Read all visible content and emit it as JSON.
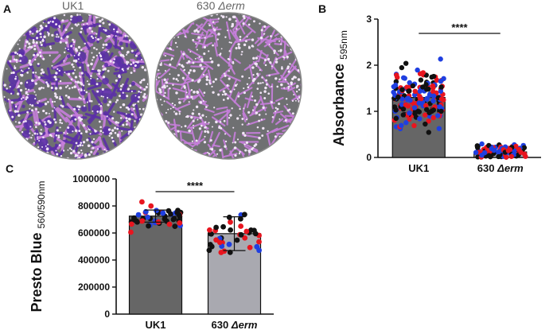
{
  "panels": {
    "A": {
      "letter": "A",
      "images": [
        {
          "label": "UK1",
          "label_italic": ""
        },
        {
          "label": "630 ",
          "label_italic": "Δerm"
        }
      ],
      "colors": {
        "ring": "#8a8a8a",
        "dense_stain": "#5b2fa8",
        "light_stain": "#c77fdc",
        "cell": "#f2e6f7"
      }
    },
    "B": {
      "letter": "B"
    },
    "C": {
      "letter": "C"
    }
  },
  "chart_data": [
    {
      "id": "B",
      "type": "bar",
      "title": "",
      "xlabel": "",
      "ylabel": "Absorbance",
      "ylabel_sub": "595nm",
      "categories": [
        "UK1",
        "630 Δerm"
      ],
      "values": [
        1.3,
        0.12
      ],
      "ylim": [
        0,
        3
      ],
      "yticks": [
        "0",
        "1",
        "2",
        "3"
      ],
      "bar_colors": [
        "#666666",
        "#a9a9b0"
      ],
      "point_colors": [
        "#e8151f",
        "#1f3fe0",
        "#111111"
      ],
      "significance": "****",
      "points_per_category": [
        180,
        90
      ],
      "spread": [
        [
          0.1,
          2.45
        ],
        [
          0.0,
          0.6
        ]
      ],
      "error_bars": false
    },
    {
      "id": "C",
      "type": "bar",
      "title": "",
      "xlabel": "",
      "ylabel": "Presto Blue",
      "ylabel_sub": "560/590nm",
      "categories": [
        "UK1",
        "630 Δerm"
      ],
      "values": [
        725000,
        595000
      ],
      "errors": [
        45000,
        125000
      ],
      "ylim": [
        0,
        1000000
      ],
      "yticks": [
        "0",
        "200000",
        "400000",
        "600000",
        "800000",
        "1000000"
      ],
      "bar_colors": [
        "#666666",
        "#a9a9b0"
      ],
      "point_colors": [
        "#e8151f",
        "#1f3fe0",
        "#111111"
      ],
      "significance": "****",
      "points_per_category": [
        48,
        40
      ],
      "spread": [
        [
          550000,
          920000
        ],
        [
          260000,
          880000
        ]
      ],
      "error_bars": true
    }
  ]
}
